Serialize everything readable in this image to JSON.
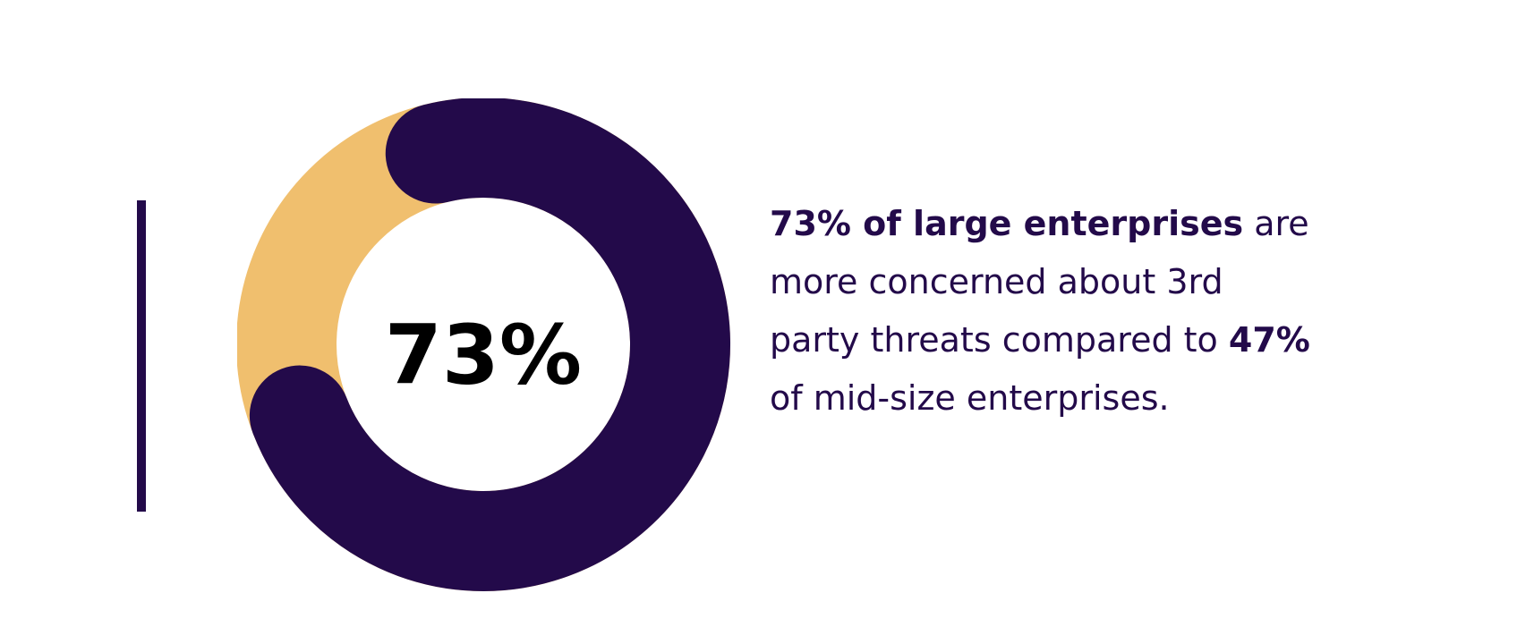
{
  "chart_data": {
    "type": "pie",
    "variant": "donut",
    "slices": [
      {
        "label": "large enterprises",
        "value": 73,
        "color": "#230a4a"
      },
      {
        "label": "",
        "value": 27,
        "color": "#f0bf6e"
      }
    ],
    "center_label": "73%",
    "legend": "none",
    "grid": false
  },
  "stat": {
    "lines": [
      {
        "bold": "73% of large enterprises",
        "rest": " are"
      },
      {
        "bold": "",
        "rest": "more concerned about 3rd"
      },
      {
        "bold": "",
        "rest": "party threats compared to ",
        "bold_after": "47%"
      },
      {
        "bold": "",
        "rest": "of mid-size enterprises."
      }
    ]
  },
  "colors": {
    "primary": "#230a4a",
    "secondary": "#f0bf6e",
    "center_text": "#000000",
    "background": "#ffffff"
  }
}
